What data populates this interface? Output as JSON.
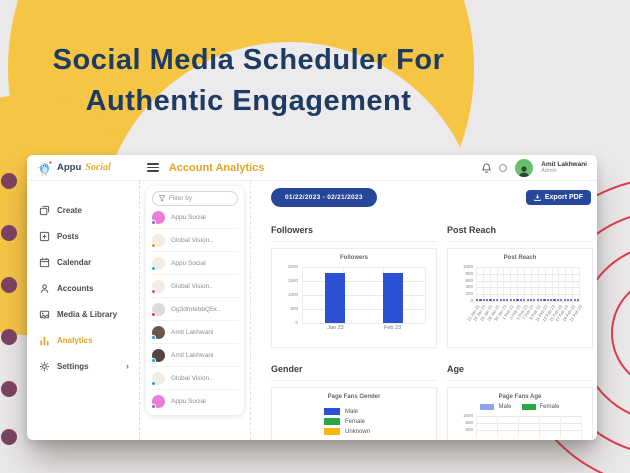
{
  "hero": {
    "title_line1": "Social Media Scheduler For",
    "title_line2": "Authentic Engagement"
  },
  "app": {
    "logo": {
      "word1": "Appu",
      "word2": "Social"
    },
    "header": {
      "title": "Account Analytics",
      "user_name": "Amit Lakhwani",
      "user_role": "Admin"
    },
    "sidebar": {
      "items": [
        {
          "label": "Create",
          "icon": "create-icon",
          "active": false
        },
        {
          "label": "Posts",
          "icon": "posts-icon",
          "active": false
        },
        {
          "label": "Calendar",
          "icon": "calendar-icon",
          "active": false
        },
        {
          "label": "Accounts",
          "icon": "accounts-icon",
          "active": false
        },
        {
          "label": "Media & Library",
          "icon": "media-library-icon",
          "active": false
        },
        {
          "label": "Analytics",
          "icon": "analytics-icon",
          "active": true
        },
        {
          "label": "Settings",
          "icon": "settings-icon",
          "active": false,
          "has_chevron": true
        }
      ]
    },
    "accounts_panel": {
      "filter_placeholder": "Filter by",
      "items": [
        {
          "name": "Appu Social",
          "avatar_color": "#e87fd2",
          "badge_color": "#8a5cf0"
        },
        {
          "name": "Global Vision..",
          "avatar_color": "#f3ece2",
          "badge_color": "#f08a24"
        },
        {
          "name": "Appu Social",
          "avatar_color": "#f3ece2",
          "badge_color": "#29a3e8"
        },
        {
          "name": "Global Vision..",
          "avatar_color": "#f3ece2",
          "badge_color": "#e8508a"
        },
        {
          "name": "Gg3dmtebbQ5x..",
          "avatar_color": "#dcdcdc",
          "badge_color": "#e53935"
        },
        {
          "name": "Amit Lakhwani",
          "avatar_color": "#6b5747",
          "badge_color": "#2196f3"
        },
        {
          "name": "Amit Lakhwani",
          "avatar_color": "#55453a",
          "badge_color": "#03a9f4"
        },
        {
          "name": "Global Vision..",
          "avatar_color": "#f3ece2",
          "badge_color": "#2196f3"
        },
        {
          "name": "Appu Social",
          "avatar_color": "#e87fd2",
          "badge_color": "#8a5cf0"
        }
      ]
    },
    "toolbar": {
      "date_range": "01/22/2023 - 02/21/2023",
      "export_label": "Export PDF"
    },
    "sections": {
      "followers": "Followers",
      "post_reach": "Post Reach",
      "gender": "Gender",
      "age": "Age"
    }
  },
  "chart_data": [
    {
      "id": "followers",
      "type": "bar",
      "title": "Followers",
      "categories": [
        "Jan 23",
        "Feb 23"
      ],
      "values": [
        1800,
        1800
      ],
      "ylim": [
        0,
        2000
      ],
      "yticks": [
        0,
        500,
        1000,
        1500,
        2000
      ],
      "bar_color": "#2b50d4",
      "grid": true
    },
    {
      "id": "post_reach",
      "type": "line",
      "title": "Post Reach",
      "x": [
        "22 Jan 23",
        "24 Jan 23",
        "26 Jan 23",
        "28 Jan 23",
        "30 Jan 23",
        "1 Feb 23",
        "3 Feb 23",
        "5 Feb 23",
        "7 Feb 23",
        "9 Feb 23",
        "11 Feb 23",
        "13 Feb 23",
        "15 Feb 23",
        "17 Feb 23",
        "19 Feb 23",
        "21 Feb 23"
      ],
      "values": [
        0,
        0,
        0,
        0,
        0,
        0,
        0,
        0,
        0,
        0,
        0,
        0,
        0,
        0,
        0,
        0,
        0,
        0,
        0,
        0,
        0,
        0,
        0,
        0,
        0,
        0,
        0,
        0,
        0,
        0,
        0
      ],
      "ylim": [
        0,
        1000
      ],
      "yticks": [
        0,
        200,
        400,
        600,
        800,
        1000
      ],
      "point_color": "#3b52c9",
      "grid": true
    },
    {
      "id": "gender",
      "type": "pie",
      "title": "Page Fans Gender",
      "legend": [
        {
          "label": "Male",
          "color": "#2b50d4"
        },
        {
          "label": "Female",
          "color": "#27a844"
        },
        {
          "label": "Unknown",
          "color": "#f6b60b"
        }
      ],
      "legend_position": "middle"
    },
    {
      "id": "age",
      "type": "bar",
      "title": "Page Fans Age",
      "legend": [
        {
          "label": "Male",
          "color": "#8ca5ee"
        },
        {
          "label": "Female",
          "color": "#27a844"
        }
      ],
      "yticks_visible": [
        1000,
        800,
        600
      ],
      "legend_position": "top"
    }
  ],
  "colors": {
    "accent_yellow": "#f6c544",
    "title_navy": "#1d3c63",
    "brand_gold": "#e9a825",
    "button_blue": "#27479a",
    "bar_blue": "#2b50d4",
    "dot_purple": "#7c4263",
    "ring_red": "#e23b4e"
  }
}
